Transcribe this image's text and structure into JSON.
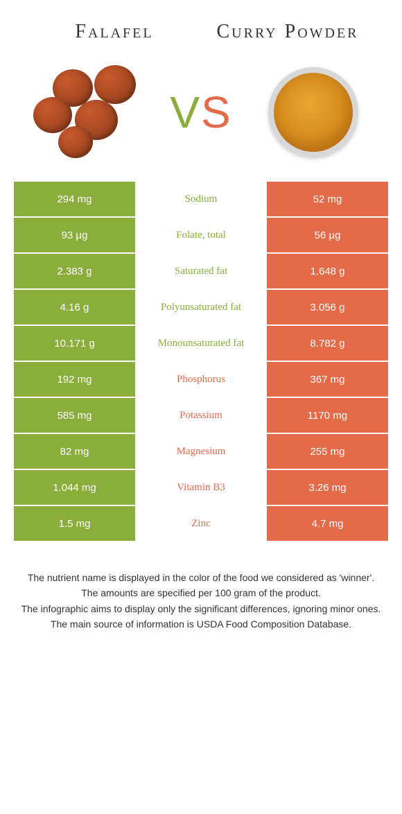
{
  "colors": {
    "green": "#8aad3c",
    "orange": "#e46b4a",
    "vs_v": "#8aad3c",
    "vs_s": "#e46b4a"
  },
  "header": {
    "left_title": "Falafel",
    "right_title": "Curry Powder",
    "vs_v": "V",
    "vs_s": "S"
  },
  "rows": [
    {
      "left": "294 mg",
      "label": "Sodium",
      "right": "52 mg",
      "winner": "left"
    },
    {
      "left": "93 µg",
      "label": "Folate, total",
      "right": "56 µg",
      "winner": "left"
    },
    {
      "left": "2.383 g",
      "label": "Saturated fat",
      "right": "1.648 g",
      "winner": "left"
    },
    {
      "left": "4.16 g",
      "label": "Polyunsaturated fat",
      "right": "3.056 g",
      "winner": "left"
    },
    {
      "left": "10.171 g",
      "label": "Monounsaturated fat",
      "right": "8.782 g",
      "winner": "left"
    },
    {
      "left": "192 mg",
      "label": "Phosphorus",
      "right": "367 mg",
      "winner": "right"
    },
    {
      "left": "585 mg",
      "label": "Potassium",
      "right": "1170 mg",
      "winner": "right"
    },
    {
      "left": "82 mg",
      "label": "Magnesium",
      "right": "255 mg",
      "winner": "right"
    },
    {
      "left": "1.044 mg",
      "label": "Vitamin B3",
      "right": "3.26 mg",
      "winner": "right"
    },
    {
      "left": "1.5 mg",
      "label": "Zinc",
      "right": "4.7 mg",
      "winner": "right"
    }
  ],
  "footer": {
    "line1": "The nutrient name is displayed in the color of the food we considered as 'winner'.",
    "line2": "The amounts are specified per 100 gram of the product.",
    "line3": "The infographic aims to display only the significant differences, ignoring minor ones.",
    "line4": "The main source of information is USDA Food Composition Database."
  }
}
